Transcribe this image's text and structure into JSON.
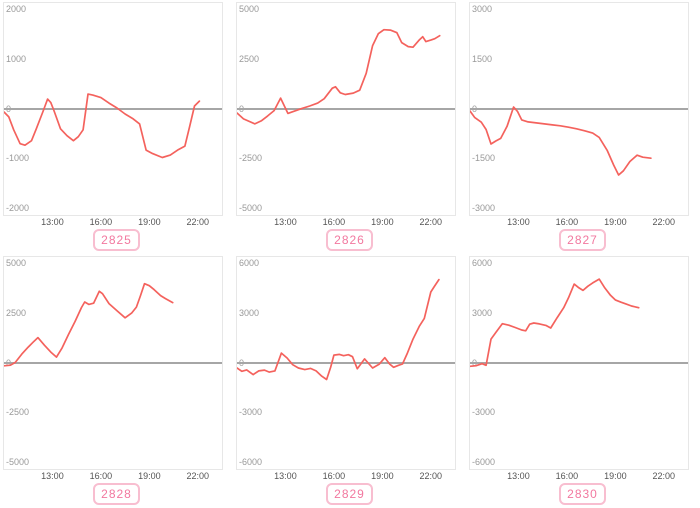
{
  "style": {
    "line_color": "#f4625d",
    "zero_line_color": "#a6a6a6",
    "plot_border_color": "#e7e7e7",
    "y_label_color": "#999999",
    "x_label_color": "#545454",
    "badge_text_color": "#f2789f",
    "badge_border_color": "#f8bed0",
    "background": "#ffffff"
  },
  "axis": {
    "x_ticks": [
      "13:00",
      "16:00",
      "19:00",
      "22:00"
    ],
    "x_tick_hours": [
      13,
      16,
      19,
      22
    ],
    "x_domain_hours": [
      10.0,
      23.5
    ]
  },
  "layout_hints": {
    "grid": "3 columns x 2 rows",
    "gridlines": "hidden",
    "zero_line": true,
    "legend": "none",
    "y_labels_inside_plot_top_left": true
  },
  "chart_data": [
    {
      "type": "line",
      "badge": "2825",
      "y_tick_values": [
        2000,
        1000,
        0,
        -1000,
        -2000
      ],
      "ylim": [
        -2140,
        2140
      ],
      "x_unit": "time-of-day-hours",
      "points": [
        [
          10.0,
          -60
        ],
        [
          10.3,
          -160
        ],
        [
          10.6,
          -420
        ],
        [
          11.0,
          -700
        ],
        [
          11.3,
          -730
        ],
        [
          11.7,
          -640
        ],
        [
          12.0,
          -400
        ],
        [
          12.4,
          -60
        ],
        [
          12.7,
          200
        ],
        [
          12.9,
          130
        ],
        [
          13.1,
          -40
        ],
        [
          13.5,
          -400
        ],
        [
          13.9,
          -540
        ],
        [
          14.3,
          -640
        ],
        [
          14.6,
          -560
        ],
        [
          14.9,
          -420
        ],
        [
          15.2,
          300
        ],
        [
          15.5,
          280
        ],
        [
          16.0,
          230
        ],
        [
          16.5,
          120
        ],
        [
          17.0,
          20
        ],
        [
          17.5,
          -100
        ],
        [
          18.0,
          -200
        ],
        [
          18.4,
          -300
        ],
        [
          18.8,
          -830
        ],
        [
          19.2,
          -900
        ],
        [
          19.8,
          -980
        ],
        [
          20.3,
          -930
        ],
        [
          20.8,
          -820
        ],
        [
          21.2,
          -750
        ],
        [
          21.5,
          -350
        ],
        [
          21.8,
          60
        ],
        [
          22.1,
          160
        ]
      ]
    },
    {
      "type": "line",
      "badge": "2826",
      "y_tick_values": [
        5000,
        2500,
        0,
        -2500,
        -5000
      ],
      "ylim": [
        -5350,
        5350
      ],
      "x_unit": "time-of-day-hours",
      "points": [
        [
          10.0,
          -200
        ],
        [
          10.4,
          -500
        ],
        [
          11.1,
          -750
        ],
        [
          11.5,
          -600
        ],
        [
          11.9,
          -350
        ],
        [
          12.3,
          -80
        ],
        [
          12.7,
          550
        ],
        [
          13.15,
          -220
        ],
        [
          13.5,
          -120
        ],
        [
          14.0,
          20
        ],
        [
          14.5,
          150
        ],
        [
          15.0,
          300
        ],
        [
          15.4,
          520
        ],
        [
          15.9,
          1050
        ],
        [
          16.1,
          1120
        ],
        [
          16.4,
          820
        ],
        [
          16.7,
          730
        ],
        [
          17.2,
          800
        ],
        [
          17.6,
          950
        ],
        [
          18.0,
          1800
        ],
        [
          18.4,
          3200
        ],
        [
          18.75,
          3800
        ],
        [
          19.1,
          4000
        ],
        [
          19.5,
          3980
        ],
        [
          19.9,
          3850
        ],
        [
          20.2,
          3350
        ],
        [
          20.6,
          3150
        ],
        [
          20.9,
          3120
        ],
        [
          21.3,
          3500
        ],
        [
          21.5,
          3650
        ],
        [
          21.7,
          3400
        ],
        [
          22.0,
          3480
        ],
        [
          22.25,
          3550
        ],
        [
          22.55,
          3700
        ]
      ]
    },
    {
      "type": "line",
      "badge": "2827",
      "y_tick_values": [
        3000,
        1500,
        0,
        -1500,
        -3000
      ],
      "ylim": [
        -3210,
        3210
      ],
      "x_unit": "time-of-day-hours",
      "points": [
        [
          10.0,
          -60
        ],
        [
          10.3,
          -260
        ],
        [
          10.7,
          -400
        ],
        [
          11.0,
          -620
        ],
        [
          11.3,
          -1060
        ],
        [
          11.6,
          -970
        ],
        [
          11.9,
          -890
        ],
        [
          12.3,
          -520
        ],
        [
          12.7,
          60
        ],
        [
          12.95,
          -80
        ],
        [
          13.2,
          -330
        ],
        [
          13.6,
          -390
        ],
        [
          14.1,
          -420
        ],
        [
          14.6,
          -450
        ],
        [
          15.1,
          -480
        ],
        [
          15.6,
          -510
        ],
        [
          16.1,
          -550
        ],
        [
          16.6,
          -600
        ],
        [
          17.1,
          -660
        ],
        [
          17.6,
          -730
        ],
        [
          18.0,
          -860
        ],
        [
          18.5,
          -1260
        ],
        [
          18.9,
          -1700
        ],
        [
          19.2,
          -2000
        ],
        [
          19.5,
          -1870
        ],
        [
          19.9,
          -1590
        ],
        [
          20.35,
          -1400
        ],
        [
          20.7,
          -1460
        ],
        [
          21.2,
          -1490
        ]
      ]
    },
    {
      "type": "line",
      "badge": "2828",
      "y_tick_values": [
        5000,
        2500,
        0,
        -2500,
        -5000
      ],
      "ylim": [
        -5350,
        5350
      ],
      "x_unit": "time-of-day-hours",
      "points": [
        [
          10.0,
          -140
        ],
        [
          10.4,
          -110
        ],
        [
          10.7,
          30
        ],
        [
          11.1,
          450
        ],
        [
          11.5,
          800
        ],
        [
          11.8,
          1050
        ],
        [
          12.1,
          1280
        ],
        [
          12.5,
          900
        ],
        [
          12.9,
          550
        ],
        [
          13.25,
          300
        ],
        [
          13.6,
          760
        ],
        [
          14.0,
          1450
        ],
        [
          14.4,
          2100
        ],
        [
          14.8,
          2800
        ],
        [
          15.0,
          3080
        ],
        [
          15.25,
          2960
        ],
        [
          15.55,
          3020
        ],
        [
          15.9,
          3620
        ],
        [
          16.1,
          3500
        ],
        [
          16.5,
          3000
        ],
        [
          17.0,
          2640
        ],
        [
          17.5,
          2280
        ],
        [
          17.9,
          2520
        ],
        [
          18.2,
          2820
        ],
        [
          18.45,
          3400
        ],
        [
          18.7,
          4000
        ],
        [
          19.0,
          3900
        ],
        [
          19.3,
          3700
        ],
        [
          19.7,
          3400
        ],
        [
          20.0,
          3250
        ],
        [
          20.45,
          3050
        ]
      ]
    },
    {
      "type": "line",
      "badge": "2829",
      "y_tick_values": [
        6000,
        3000,
        0,
        -3000,
        -6000
      ],
      "ylim": [
        -6420,
        6420
      ],
      "x_unit": "time-of-day-hours",
      "points": [
        [
          10.0,
          -300
        ],
        [
          10.3,
          -500
        ],
        [
          10.6,
          -420
        ],
        [
          11.0,
          -700
        ],
        [
          11.35,
          -480
        ],
        [
          11.7,
          -430
        ],
        [
          12.0,
          -550
        ],
        [
          12.35,
          -480
        ],
        [
          12.75,
          600
        ],
        [
          13.1,
          300
        ],
        [
          13.45,
          -100
        ],
        [
          13.8,
          -300
        ],
        [
          14.2,
          -400
        ],
        [
          14.55,
          -330
        ],
        [
          14.9,
          -480
        ],
        [
          15.25,
          -800
        ],
        [
          15.55,
          -1000
        ],
        [
          15.8,
          -250
        ],
        [
          16.0,
          480
        ],
        [
          16.35,
          520
        ],
        [
          16.6,
          440
        ],
        [
          16.9,
          500
        ],
        [
          17.15,
          380
        ],
        [
          17.45,
          -350
        ],
        [
          17.9,
          250
        ],
        [
          18.4,
          -300
        ],
        [
          18.8,
          -80
        ],
        [
          19.15,
          320
        ],
        [
          19.45,
          -60
        ],
        [
          19.7,
          -260
        ],
        [
          20.0,
          -140
        ],
        [
          20.25,
          -60
        ],
        [
          20.55,
          600
        ],
        [
          20.9,
          1450
        ],
        [
          21.3,
          2250
        ],
        [
          21.6,
          2700
        ],
        [
          22.0,
          4300
        ],
        [
          22.2,
          4600
        ],
        [
          22.5,
          5050
        ]
      ]
    },
    {
      "type": "line",
      "badge": "2830",
      "y_tick_values": [
        6000,
        3000,
        0,
        -3000,
        -6000
      ],
      "ylim": [
        -6420,
        6420
      ],
      "x_unit": "time-of-day-hours",
      "points": [
        [
          10.0,
          -200
        ],
        [
          10.4,
          -160
        ],
        [
          10.75,
          -40
        ],
        [
          11.0,
          -140
        ],
        [
          11.3,
          1450
        ],
        [
          11.6,
          1850
        ],
        [
          12.0,
          2380
        ],
        [
          12.4,
          2290
        ],
        [
          12.8,
          2150
        ],
        [
          13.2,
          2000
        ],
        [
          13.45,
          1950
        ],
        [
          13.7,
          2350
        ],
        [
          13.95,
          2420
        ],
        [
          14.3,
          2370
        ],
        [
          14.7,
          2280
        ],
        [
          15.0,
          2120
        ],
        [
          15.4,
          2750
        ],
        [
          15.8,
          3350
        ],
        [
          16.1,
          3950
        ],
        [
          16.45,
          4780
        ],
        [
          16.75,
          4550
        ],
        [
          17.0,
          4400
        ],
        [
          17.3,
          4650
        ],
        [
          17.6,
          4850
        ],
        [
          18.0,
          5080
        ],
        [
          18.35,
          4550
        ],
        [
          18.7,
          4100
        ],
        [
          19.0,
          3820
        ],
        [
          19.35,
          3680
        ],
        [
          19.7,
          3560
        ],
        [
          20.0,
          3450
        ],
        [
          20.45,
          3350
        ]
      ]
    }
  ]
}
